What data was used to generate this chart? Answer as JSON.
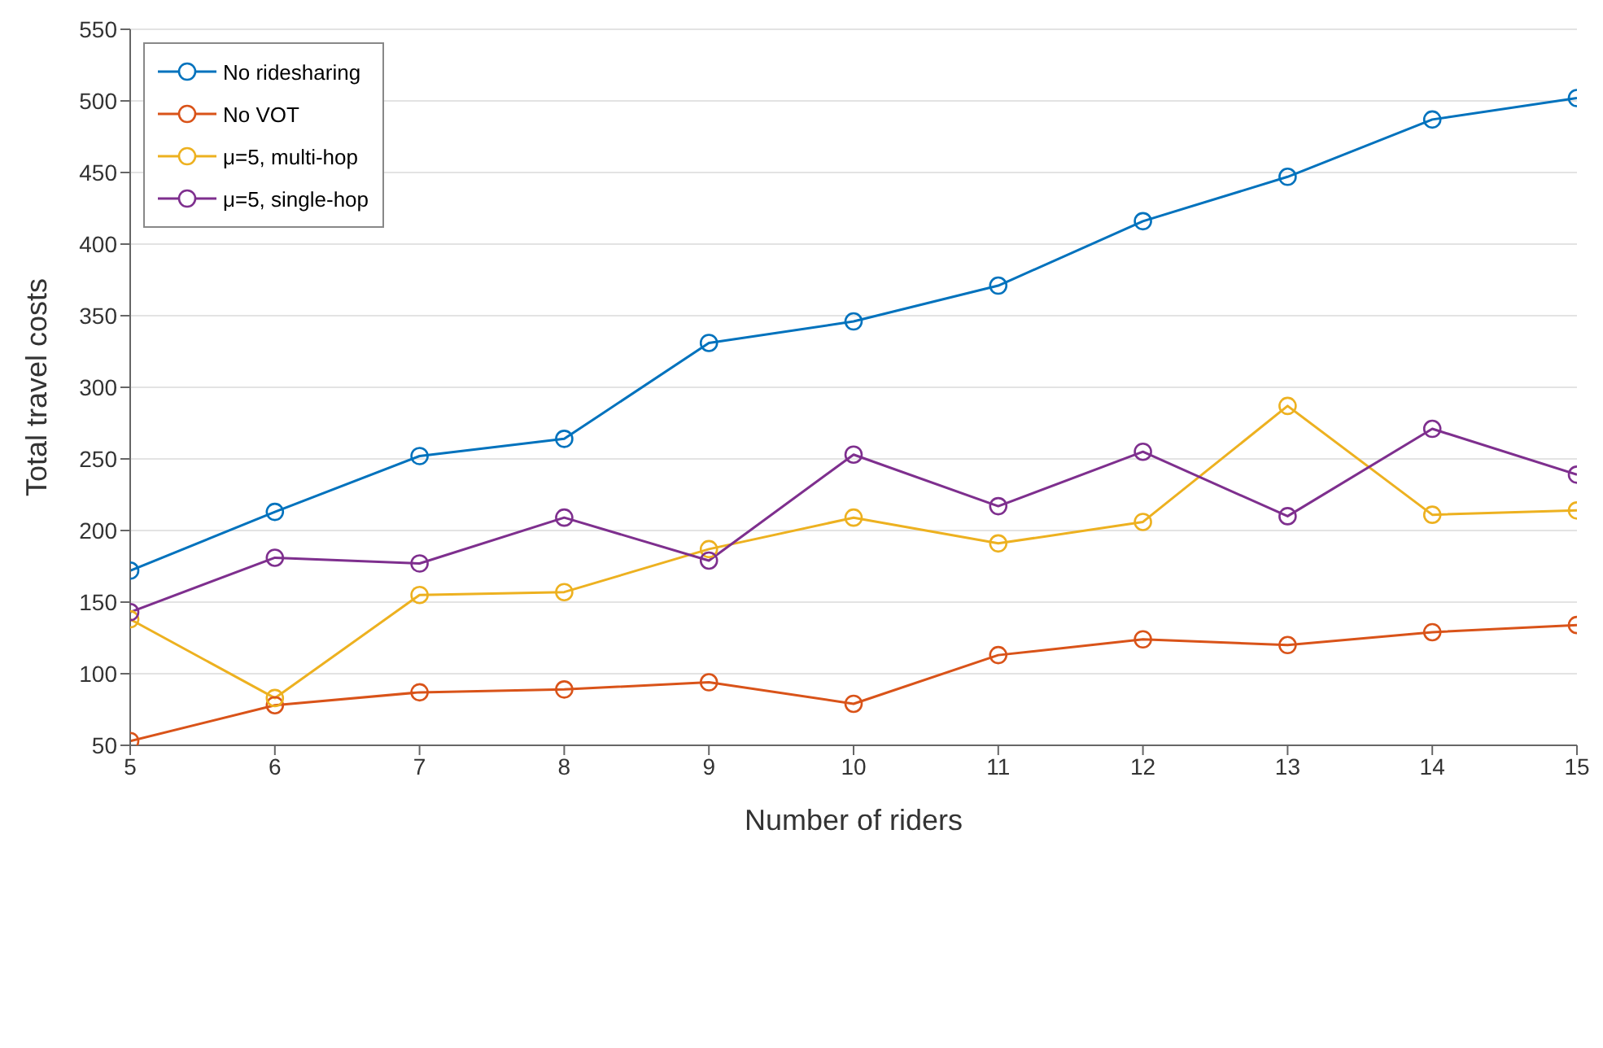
{
  "chart_data": {
    "type": "line",
    "xlabel": "Number of riders",
    "ylabel": "Total travel costs",
    "x": [
      5,
      6,
      7,
      8,
      9,
      10,
      11,
      12,
      13,
      14,
      15
    ],
    "series": [
      {
        "name": "No ridesharing",
        "color": "#0072bd",
        "values": [
          172,
          213,
          252,
          264,
          331,
          346,
          371,
          416,
          447,
          487,
          502
        ]
      },
      {
        "name": "No VOT",
        "color": "#d95319",
        "values": [
          53,
          78,
          87,
          89,
          94,
          79,
          113,
          124,
          120,
          129,
          134
        ]
      },
      {
        "name": "μ=5, multi-hop",
        "color": "#edb120",
        "values": [
          138,
          83,
          155,
          157,
          187,
          209,
          191,
          206,
          287,
          211,
          214
        ]
      },
      {
        "name": "μ=5, single-hop",
        "color": "#7e2f8e",
        "values": [
          143,
          181,
          177,
          209,
          179,
          253,
          217,
          255,
          210,
          271,
          239
        ]
      }
    ],
    "xlim": [
      5,
      15
    ],
    "xticks": [
      5,
      6,
      7,
      8,
      9,
      10,
      11,
      12,
      13,
      14,
      15
    ],
    "ylim": [
      50,
      550
    ],
    "yticks": [
      50,
      100,
      150,
      200,
      250,
      300,
      350,
      400,
      450,
      500,
      550
    ],
    "grid": "y",
    "legend": "top left",
    "marker": "circle",
    "line_style": "solid"
  }
}
